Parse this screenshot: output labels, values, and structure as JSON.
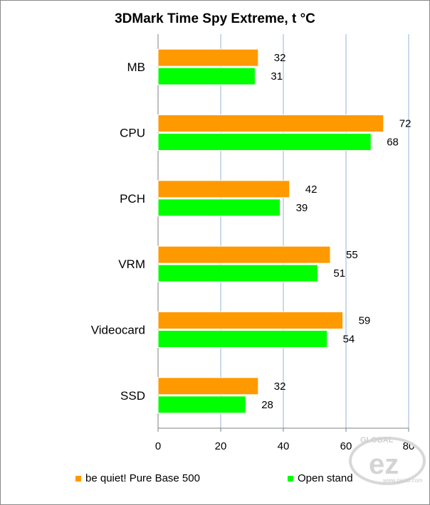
{
  "chart_data": {
    "type": "bar",
    "orientation": "horizontal",
    "title": "3DMark Time Spy Extreme, t °C",
    "categories": [
      "MB",
      "CPU",
      "PCH",
      "VRM",
      "Videocard",
      "SSD"
    ],
    "series": [
      {
        "name": "be quiet! Pure Base 500",
        "values": [
          32,
          72,
          42,
          55,
          59,
          32
        ],
        "color": "#ff9900"
      },
      {
        "name": "Open stand",
        "values": [
          31,
          68,
          39,
          51,
          54,
          28
        ],
        "color": "#00ff00"
      }
    ],
    "xlim": [
      0,
      80
    ],
    "xticks": [
      0,
      20,
      40,
      60,
      80
    ],
    "grid": true,
    "legend_position": "bottom"
  },
  "watermark": {
    "text": "GLOBAL",
    "subtext": "ez",
    "url": "www.gecid.com"
  }
}
